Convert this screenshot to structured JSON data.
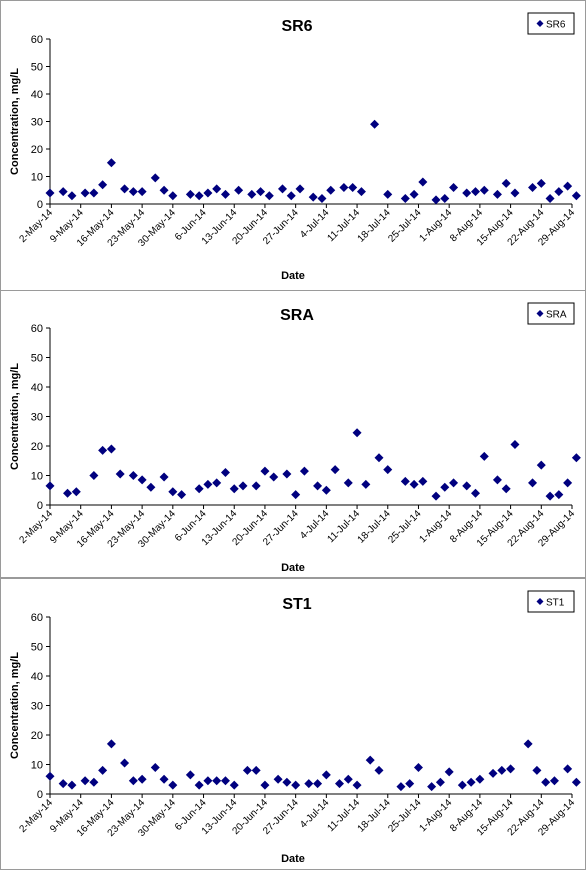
{
  "colors": {
    "marker": "#00007f",
    "axis": "#000000",
    "border": "#9a9a9a"
  },
  "chart_data": [
    {
      "type": "scatter",
      "title": "SR6",
      "xlabel": "Date",
      "ylabel": "Concentration, mg/L",
      "ylim": [
        0,
        60
      ],
      "yticks": [
        0,
        10,
        20,
        30,
        40,
        50,
        60
      ],
      "xlim": [
        "2014-05-02",
        "2014-08-29"
      ],
      "xticks": [
        "2-May-14",
        "9-May-14",
        "16-May-14",
        "23-May-14",
        "30-May-14",
        "6-Jun-14",
        "13-Jun-14",
        "20-Jun-14",
        "27-Jun-14",
        "4-Jul-14",
        "11-Jul-14",
        "18-Jul-14",
        "25-Jul-14",
        "1-Aug-14",
        "8-Aug-14",
        "15-Aug-14",
        "22-Aug-14",
        "29-Aug-14"
      ],
      "grid": false,
      "legend": "top-right",
      "series": [
        {
          "name": "SR6",
          "x": [
            "2014-05-02",
            "2014-05-05",
            "2014-05-07",
            "2014-05-10",
            "2014-05-12",
            "2014-05-14",
            "2014-05-16",
            "2014-05-19",
            "2014-05-21",
            "2014-05-23",
            "2014-05-26",
            "2014-05-28",
            "2014-05-30",
            "2014-06-03",
            "2014-06-05",
            "2014-06-07",
            "2014-06-09",
            "2014-06-11",
            "2014-06-14",
            "2014-06-17",
            "2014-06-19",
            "2014-06-21",
            "2014-06-24",
            "2014-06-26",
            "2014-06-28",
            "2014-07-01",
            "2014-07-03",
            "2014-07-05",
            "2014-07-08",
            "2014-07-10",
            "2014-07-12",
            "2014-07-15",
            "2014-07-18",
            "2014-07-22",
            "2014-07-24",
            "2014-07-26",
            "2014-07-29",
            "2014-07-31",
            "2014-08-02",
            "2014-08-05",
            "2014-08-07",
            "2014-08-09",
            "2014-08-12",
            "2014-08-14",
            "2014-08-16",
            "2014-08-20",
            "2014-08-22",
            "2014-08-24",
            "2014-08-26",
            "2014-08-28",
            "2014-08-30"
          ],
          "y": [
            4,
            4.5,
            3,
            4,
            4,
            7,
            15,
            5.5,
            4.5,
            4.5,
            9.5,
            5,
            3,
            3.5,
            3,
            4,
            5.5,
            3.5,
            5,
            3.5,
            4.5,
            3,
            5.5,
            3,
            5.5,
            2.5,
            2,
            5,
            6,
            6,
            4.5,
            29,
            3.5,
            2,
            3.5,
            8,
            1.5,
            2,
            6,
            4,
            4.5,
            5,
            3.5,
            7.5,
            4,
            6,
            7.5,
            2,
            4.5,
            6.5,
            3
          ]
        }
      ]
    },
    {
      "type": "scatter",
      "title": "SRA",
      "xlabel": "Date",
      "ylabel": "Concentration, mg/L",
      "ylim": [
        0,
        60
      ],
      "yticks": [
        0,
        10,
        20,
        30,
        40,
        50,
        60
      ],
      "xlim": [
        "2014-05-02",
        "2014-08-29"
      ],
      "xticks": [
        "2-May-14",
        "9-May-14",
        "16-May-14",
        "23-May-14",
        "30-May-14",
        "6-Jun-14",
        "13-Jun-14",
        "20-Jun-14",
        "27-Jun-14",
        "4-Jul-14",
        "11-Jul-14",
        "18-Jul-14",
        "25-Jul-14",
        "1-Aug-14",
        "8-Aug-14",
        "15-Aug-14",
        "22-Aug-14",
        "29-Aug-14"
      ],
      "grid": false,
      "legend": "top-right",
      "series": [
        {
          "name": "SRA",
          "x": [
            "2014-05-02",
            "2014-05-06",
            "2014-05-08",
            "2014-05-12",
            "2014-05-14",
            "2014-05-16",
            "2014-05-18",
            "2014-05-21",
            "2014-05-23",
            "2014-05-25",
            "2014-05-28",
            "2014-05-30",
            "2014-06-01",
            "2014-06-05",
            "2014-06-07",
            "2014-06-09",
            "2014-06-11",
            "2014-06-13",
            "2014-06-15",
            "2014-06-18",
            "2014-06-20",
            "2014-06-22",
            "2014-06-25",
            "2014-06-27",
            "2014-06-29",
            "2014-07-02",
            "2014-07-04",
            "2014-07-06",
            "2014-07-09",
            "2014-07-11",
            "2014-07-13",
            "2014-07-16",
            "2014-07-18",
            "2014-07-22",
            "2014-07-24",
            "2014-07-26",
            "2014-07-29",
            "2014-07-31",
            "2014-08-02",
            "2014-08-05",
            "2014-08-07",
            "2014-08-09",
            "2014-08-12",
            "2014-08-14",
            "2014-08-16",
            "2014-08-20",
            "2014-08-22",
            "2014-08-24",
            "2014-08-26",
            "2014-08-28",
            "2014-08-30"
          ],
          "y": [
            6.5,
            4,
            4.5,
            10,
            18.5,
            19,
            10.5,
            10,
            8.5,
            6,
            9.5,
            4.5,
            3.5,
            5.5,
            7,
            7.5,
            11,
            5.5,
            6.5,
            6.5,
            11.5,
            9.5,
            10.5,
            3.5,
            11.5,
            6.5,
            5,
            12,
            7.5,
            24.5,
            7,
            16,
            12,
            8,
            7,
            8,
            3,
            6,
            7.5,
            6.5,
            4,
            16.5,
            8.5,
            5.5,
            20.5,
            7.5,
            13.5,
            3,
            3.5,
            7.5,
            16
          ]
        }
      ]
    },
    {
      "type": "scatter",
      "title": "ST1",
      "xlabel": "Date",
      "ylabel": "Concentration, mg/L",
      "ylim": [
        0,
        60
      ],
      "yticks": [
        0,
        10,
        20,
        30,
        40,
        50,
        60
      ],
      "xlim": [
        "2014-05-02",
        "2014-08-29"
      ],
      "xticks": [
        "2-May-14",
        "9-May-14",
        "16-May-14",
        "23-May-14",
        "30-May-14",
        "6-Jun-14",
        "13-Jun-14",
        "20-Jun-14",
        "27-Jun-14",
        "4-Jul-14",
        "11-Jul-14",
        "18-Jul-14",
        "25-Jul-14",
        "1-Aug-14",
        "8-Aug-14",
        "15-Aug-14",
        "22-Aug-14",
        "29-Aug-14"
      ],
      "grid": false,
      "legend": "top-right",
      "series": [
        {
          "name": "ST1",
          "x": [
            "2014-05-02",
            "2014-05-05",
            "2014-05-07",
            "2014-05-10",
            "2014-05-12",
            "2014-05-14",
            "2014-05-16",
            "2014-05-19",
            "2014-05-21",
            "2014-05-23",
            "2014-05-26",
            "2014-05-28",
            "2014-05-30",
            "2014-06-03",
            "2014-06-05",
            "2014-06-07",
            "2014-06-09",
            "2014-06-11",
            "2014-06-13",
            "2014-06-16",
            "2014-06-18",
            "2014-06-20",
            "2014-06-23",
            "2014-06-25",
            "2014-06-27",
            "2014-06-30",
            "2014-07-02",
            "2014-07-04",
            "2014-07-07",
            "2014-07-09",
            "2014-07-11",
            "2014-07-14",
            "2014-07-16",
            "2014-07-21",
            "2014-07-23",
            "2014-07-25",
            "2014-07-28",
            "2014-07-30",
            "2014-08-01",
            "2014-08-04",
            "2014-08-06",
            "2014-08-08",
            "2014-08-11",
            "2014-08-13",
            "2014-08-15",
            "2014-08-19",
            "2014-08-21",
            "2014-08-23",
            "2014-08-25",
            "2014-08-28",
            "2014-08-30"
          ],
          "y": [
            6,
            3.5,
            3,
            4.5,
            4,
            8,
            17,
            10.5,
            4.5,
            5,
            9,
            5,
            3,
            6.5,
            3,
            4.5,
            4.5,
            4.5,
            3,
            8,
            8,
            3,
            5,
            4,
            3,
            3.5,
            3.5,
            6.5,
            3.5,
            5,
            3,
            11.5,
            8,
            2.5,
            3.5,
            9,
            2.5,
            4,
            7.5,
            3,
            4,
            5,
            7,
            8,
            8.5,
            17,
            8,
            4,
            4.5,
            8.5,
            4
          ]
        }
      ]
    }
  ]
}
